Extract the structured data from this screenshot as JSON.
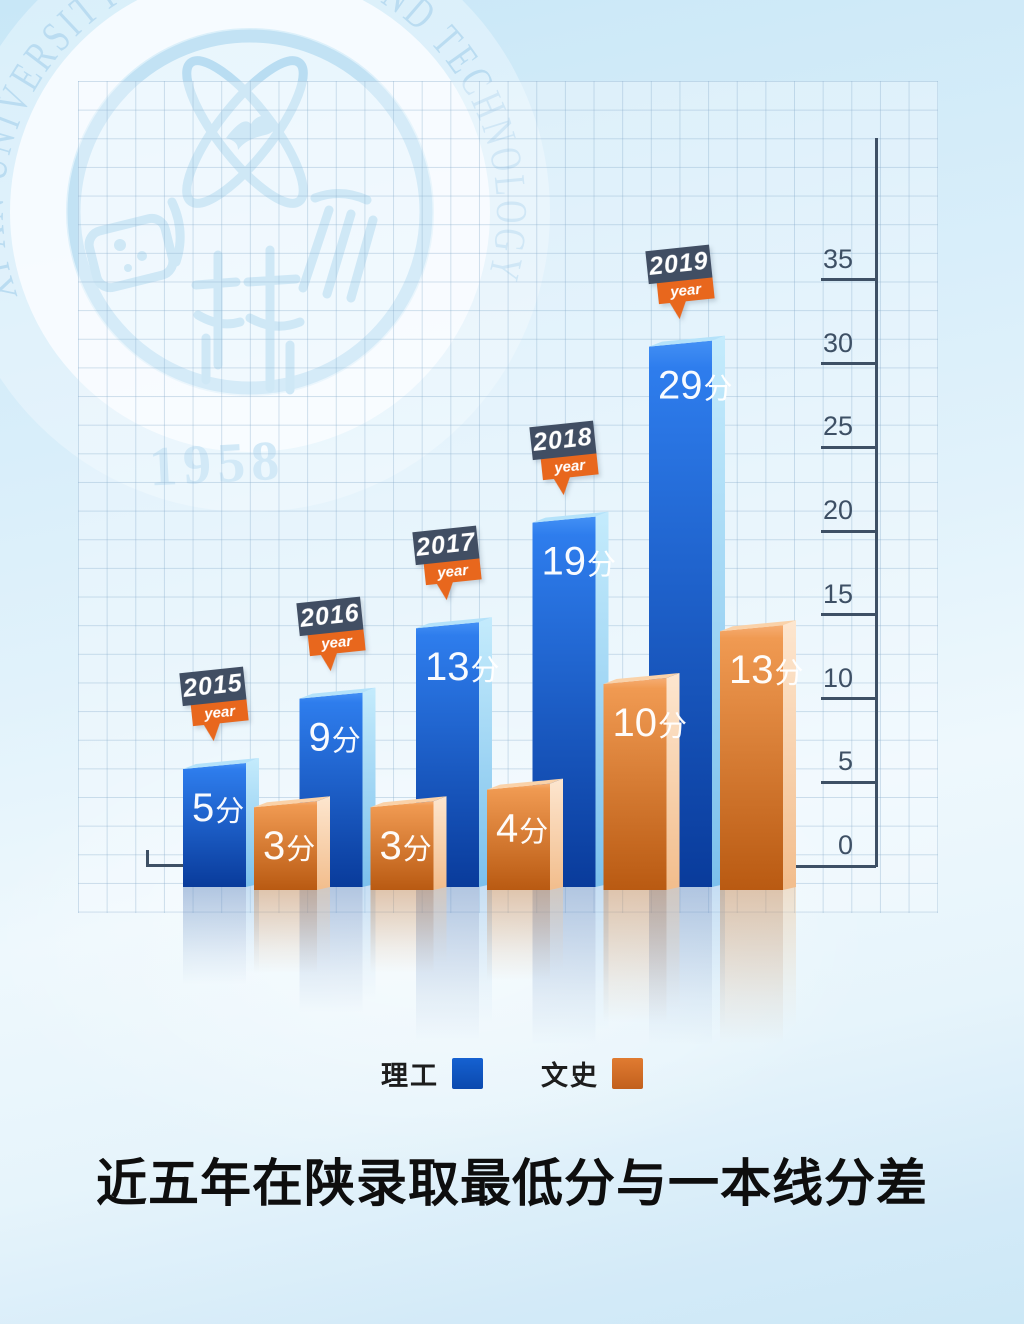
{
  "watermark": {
    "ring_text": "XI'AN UNIVERSITY OF SCIENCE AND TECHNOLOGY",
    "founding_year": "1958",
    "color": "#bcdef2"
  },
  "chart_data": {
    "type": "bar",
    "title": "近五年在陕录取最低分与一本线分差",
    "categories": [
      "2015",
      "2016",
      "2017",
      "2018",
      "2019"
    ],
    "category_banner_label": "year",
    "value_suffix": "分",
    "series": [
      {
        "name": "理工",
        "legend_color": "#1561d1",
        "legend_color_dark": "#0b49ae",
        "values": [
          5,
          9,
          13,
          19,
          29
        ],
        "bar_colors": {
          "front_top": "#4390f5",
          "front_mid": "#2e7ded",
          "front_bottom": "#093b9b",
          "side_top": "#c4ebfc",
          "side_bottom": "#7cc0ec",
          "top_face": "#b4e2fa",
          "reflection": "#6e91c4",
          "reflection_side": "#9fc6ea"
        }
      },
      {
        "name": "文史",
        "legend_color": "#e07b31",
        "legend_color_dark": "#c2601d",
        "values": [
          3,
          3,
          4,
          10,
          13
        ],
        "bar_colors": {
          "front_top": "#f6ad72",
          "front_mid": "#f09a52",
          "front_bottom": "#b95a12",
          "side_top": "#fde6cf",
          "side_bottom": "#f2bd8c",
          "top_face": "#fad2a9",
          "reflection": "#c98f5d",
          "reflection_side": "#eccaa6"
        }
      }
    ],
    "y_axis": {
      "min": 0,
      "max": 35,
      "step": 5,
      "ticks": [
        0,
        5,
        10,
        15,
        20,
        25,
        30,
        35
      ],
      "color": "#3e5065"
    },
    "year_tag": {
      "box_color": "#414e63",
      "banner_color": "#e8671d",
      "text_color": "#ffffff"
    },
    "grid": true,
    "legend_position": "bottom"
  }
}
